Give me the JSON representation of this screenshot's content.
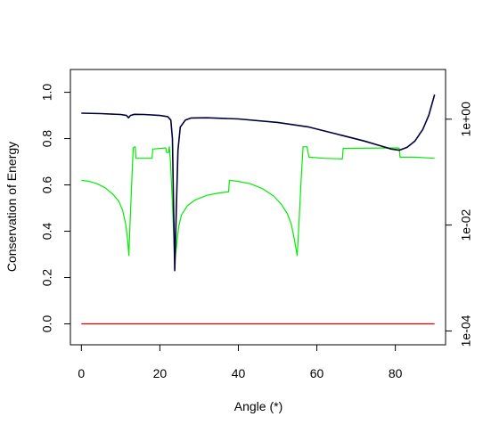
{
  "chart_data": {
    "type": "line",
    "title": "",
    "xlabel": "Angle (*)",
    "ylabel": "Conservation of Energy",
    "xlim": [
      -2.8,
      92.8
    ],
    "ylim": [
      -0.0904,
      1.0984
    ],
    "x_ticks": [
      0,
      20,
      40,
      60,
      80
    ],
    "y_ticks": [
      0.0,
      0.2,
      0.4,
      0.6,
      0.8,
      1.0
    ],
    "x_tick_labels": [
      "0",
      "20",
      "40",
      "60",
      "80"
    ],
    "y_tick_labels": [
      "0.0",
      "0.2",
      "0.4",
      "0.6",
      "0.8",
      "1.0"
    ],
    "right_axis": {
      "scale": "log",
      "ylim_log10": [
        -4.2615,
        0.9385
      ],
      "ticks_log10": [
        -4,
        -2,
        0
      ],
      "tick_labels": [
        "1e-04",
        "1e-02",
        "1e+00"
      ]
    },
    "grid": false,
    "legend": "none",
    "series": [
      {
        "color": "#00003b",
        "axis": "left",
        "points": [
          [
            0,
            0.91
          ],
          [
            5,
            0.908
          ],
          [
            10,
            0.904
          ],
          [
            11.5,
            0.9
          ],
          [
            12,
            0.89
          ],
          [
            12.5,
            0.9
          ],
          [
            13.5,
            0.905
          ],
          [
            16,
            0.904
          ],
          [
            20,
            0.9
          ],
          [
            22,
            0.895
          ],
          [
            22.8,
            0.88
          ],
          [
            23.2,
            0.8
          ],
          [
            23.5,
            0.5
          ],
          [
            23.8,
            0.23
          ],
          [
            24.2,
            0.5
          ],
          [
            24.6,
            0.75
          ],
          [
            25.2,
            0.85
          ],
          [
            26.5,
            0.88
          ],
          [
            28,
            0.889
          ],
          [
            32,
            0.89
          ],
          [
            40,
            0.885
          ],
          [
            50,
            0.87
          ],
          [
            58,
            0.85
          ],
          [
            65,
            0.82
          ],
          [
            72,
            0.79
          ],
          [
            76,
            0.77
          ],
          [
            79,
            0.755
          ],
          [
            81,
            0.75
          ],
          [
            83,
            0.762
          ],
          [
            85,
            0.79
          ],
          [
            87,
            0.84
          ],
          [
            88.5,
            0.9
          ],
          [
            90,
            0.99
          ]
        ]
      },
      {
        "color": "#00ee00",
        "axis": "left",
        "points": [
          [
            0,
            0.62
          ],
          [
            2,
            0.615
          ],
          [
            4,
            0.605
          ],
          [
            6,
            0.588
          ],
          [
            8,
            0.56
          ],
          [
            9.5,
            0.53
          ],
          [
            10.5,
            0.49
          ],
          [
            11.3,
            0.43
          ],
          [
            11.8,
            0.36
          ],
          [
            12.1,
            0.295
          ],
          [
            12.4,
            0.43
          ],
          [
            12.8,
            0.6
          ],
          [
            13.2,
            0.76
          ],
          [
            13.7,
            0.765
          ],
          [
            13.9,
            0.715
          ],
          [
            18,
            0.715
          ],
          [
            18.2,
            0.755
          ],
          [
            21.5,
            0.76
          ],
          [
            21.7,
            0.74
          ],
          [
            22.2,
            0.74
          ],
          [
            22.4,
            0.765
          ],
          [
            22.7,
            0.7
          ],
          [
            23.1,
            0.55
          ],
          [
            23.5,
            0.4
          ],
          [
            23.8,
            0.265
          ],
          [
            24.2,
            0.33
          ],
          [
            24.8,
            0.42
          ],
          [
            25.5,
            0.47
          ],
          [
            27,
            0.51
          ],
          [
            29,
            0.535
          ],
          [
            32,
            0.555
          ],
          [
            35,
            0.565
          ],
          [
            37.5,
            0.57
          ],
          [
            37.7,
            0.62
          ],
          [
            40,
            0.615
          ],
          [
            43,
            0.605
          ],
          [
            46,
            0.585
          ],
          [
            49,
            0.552
          ],
          [
            51,
            0.515
          ],
          [
            52.5,
            0.475
          ],
          [
            53.5,
            0.43
          ],
          [
            54.3,
            0.36
          ],
          [
            55,
            0.295
          ],
          [
            55.5,
            0.45
          ],
          [
            56,
            0.62
          ],
          [
            56.5,
            0.765
          ],
          [
            57.5,
            0.765
          ],
          [
            58,
            0.72
          ],
          [
            62,
            0.715
          ],
          [
            66.5,
            0.712
          ],
          [
            66.7,
            0.758
          ],
          [
            80.5,
            0.76
          ],
          [
            81,
            0.758
          ],
          [
            81.2,
            0.72
          ],
          [
            85,
            0.72
          ],
          [
            90,
            0.715
          ]
        ]
      },
      {
        "color": "#dd0000",
        "axis": "left",
        "points": [
          [
            0,
            0.0
          ],
          [
            90,
            0.0
          ]
        ]
      }
    ]
  }
}
